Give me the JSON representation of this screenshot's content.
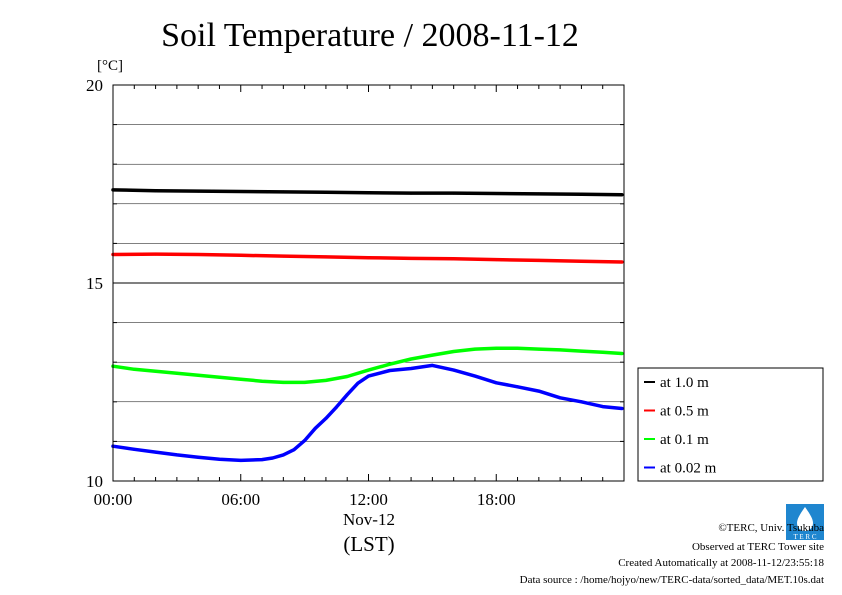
{
  "chart_data": {
    "type": "line",
    "title": "Soil Temperature / 2008-11-12",
    "ylabel": "[°C]",
    "xlabel": "(LST)",
    "x_date_label": "Nov-12",
    "ylim": [
      10,
      20
    ],
    "xlim_hours": [
      0,
      24
    ],
    "y_ticks": [
      "10",
      "15",
      "20"
    ],
    "y_gridlines": [
      11,
      12,
      13,
      14,
      15,
      16,
      17,
      18,
      19
    ],
    "x_ticks": [
      {
        "hour": 0,
        "label": "00:00"
      },
      {
        "hour": 6,
        "label": "06:00"
      },
      {
        "hour": 12,
        "label": "12:00"
      },
      {
        "hour": 18,
        "label": "18:00"
      }
    ],
    "grid": true,
    "legend_position": "right",
    "series": [
      {
        "name": "at 1.0 m",
        "color": "#000000",
        "x": [
          0,
          2,
          4,
          6,
          8,
          10,
          12,
          14,
          16,
          18,
          20,
          22,
          23.9
        ],
        "y": [
          17.35,
          17.33,
          17.32,
          17.31,
          17.3,
          17.29,
          17.28,
          17.27,
          17.27,
          17.26,
          17.25,
          17.24,
          17.23
        ]
      },
      {
        "name": "at 0.5 m",
        "color": "#ff0000",
        "x": [
          0,
          2,
          4,
          6,
          8,
          10,
          12,
          14,
          16,
          18,
          20,
          22,
          23.9
        ],
        "y": [
          15.72,
          15.73,
          15.72,
          15.7,
          15.68,
          15.66,
          15.64,
          15.62,
          15.61,
          15.59,
          15.57,
          15.55,
          15.53
        ]
      },
      {
        "name": "at 0.1 m",
        "color": "#00ff00",
        "x": [
          0,
          1,
          2,
          3,
          4,
          5,
          6,
          7,
          8,
          9,
          10,
          11,
          12,
          13,
          14,
          15,
          16,
          17,
          18,
          19,
          20,
          21,
          22,
          23,
          23.9
        ],
        "y": [
          12.9,
          12.82,
          12.77,
          12.72,
          12.67,
          12.62,
          12.57,
          12.52,
          12.49,
          12.49,
          12.54,
          12.64,
          12.8,
          12.95,
          13.08,
          13.18,
          13.27,
          13.33,
          13.35,
          13.35,
          13.33,
          13.31,
          13.28,
          13.25,
          13.22
        ]
      },
      {
        "name": "at 0.02 m",
        "color": "#0000ff",
        "x": [
          0,
          1,
          2,
          3,
          4,
          5,
          6,
          7,
          7.5,
          8,
          8.5,
          9,
          9.5,
          10,
          10.5,
          11,
          11.5,
          12,
          13,
          14,
          15,
          16,
          17,
          18,
          19,
          20,
          21,
          22,
          23,
          23.9
        ],
        "y": [
          10.88,
          10.8,
          10.73,
          10.66,
          10.6,
          10.55,
          10.52,
          10.54,
          10.58,
          10.66,
          10.79,
          11.02,
          11.33,
          11.58,
          11.87,
          12.18,
          12.47,
          12.65,
          12.79,
          12.84,
          12.92,
          12.8,
          12.65,
          12.48,
          12.38,
          12.27,
          12.1,
          12.0,
          11.88,
          11.83
        ]
      }
    ]
  },
  "footer": {
    "credit": "©TERC, Univ. Tsukuba",
    "site": "Observed at TERC Tower site",
    "created": "Created Automatically at 2008-11-12/23:55:18",
    "source": "Data source : /home/hojyo/new/TERC-data/sorted_data/MET.10s.dat",
    "logo_text": "T E R C"
  }
}
